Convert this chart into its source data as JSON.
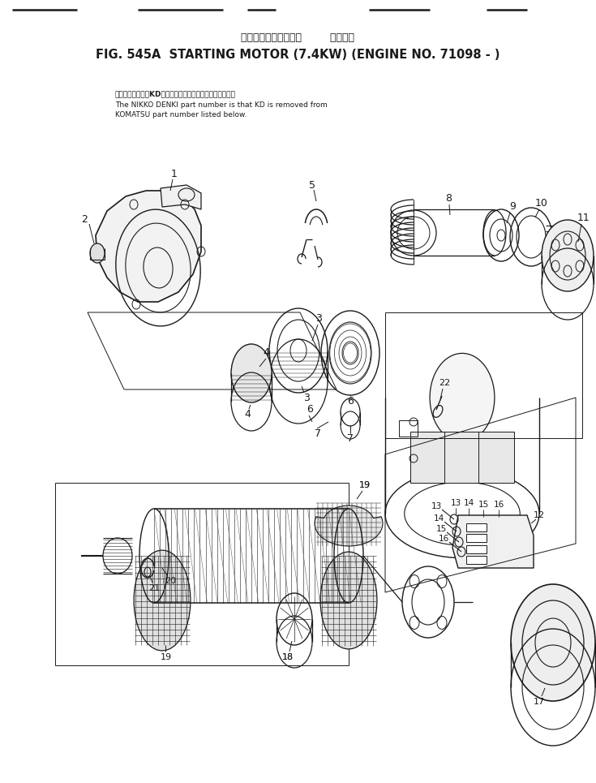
{
  "title_jp": "スターティングモータ        適用号機",
  "title_en": "FIG. 545A  STARTING MOTOR (7.4KW) (ENGINE NO. 71098 - )",
  "note_line1": "品番のメーカ記号KDを除いたものが日興電機の品番です。",
  "note_line2": "The NIKKO DENKI part number is that KD is removed from",
  "note_line3": "KOMATSU part number listed below.",
  "bg_color": "#ffffff",
  "lc": "#1a1a1a",
  "figw": 7.35,
  "figh": 9.65,
  "dpi": 100
}
